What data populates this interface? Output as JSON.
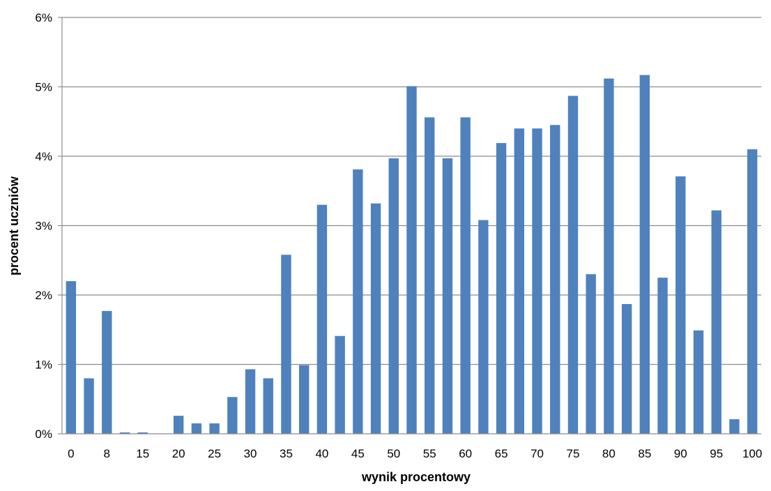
{
  "chart_data": {
    "type": "bar",
    "title": "",
    "xlabel": "wynik procentowy",
    "ylabel": "procent uczniów",
    "ylim": [
      0,
      6
    ],
    "y_ticks": [
      0,
      1,
      2,
      3,
      4,
      5,
      6
    ],
    "y_tick_labels": [
      "0%",
      "1%",
      "2%",
      "3%",
      "4%",
      "5%",
      "6%"
    ],
    "grid": "horizontal",
    "legend": "none",
    "bar_color": "#4f81bd",
    "categories": [
      "0",
      "",
      "8",
      "",
      "15",
      "",
      "20",
      "",
      "25",
      "",
      "30",
      "",
      "35",
      "",
      "40",
      "",
      "45",
      "",
      "50",
      "",
      "55",
      "",
      "60",
      "",
      "65",
      "",
      "70",
      "",
      "75",
      "",
      "80",
      "",
      "85",
      "",
      "90",
      "",
      "95",
      "",
      "100"
    ],
    "values": [
      2.2,
      0.8,
      1.77,
      0.02,
      0.02,
      0.0,
      0.26,
      0.15,
      0.15,
      0.53,
      0.93,
      0.8,
      2.58,
      0.99,
      3.3,
      1.41,
      3.81,
      3.32,
      3.97,
      5.01,
      4.56,
      3.97,
      4.56,
      3.08,
      4.19,
      4.4,
      4.4,
      4.45,
      4.87,
      2.3,
      5.12,
      1.87,
      5.17,
      2.25,
      3.71,
      1.49,
      3.22,
      0.21,
      4.1
    ]
  }
}
